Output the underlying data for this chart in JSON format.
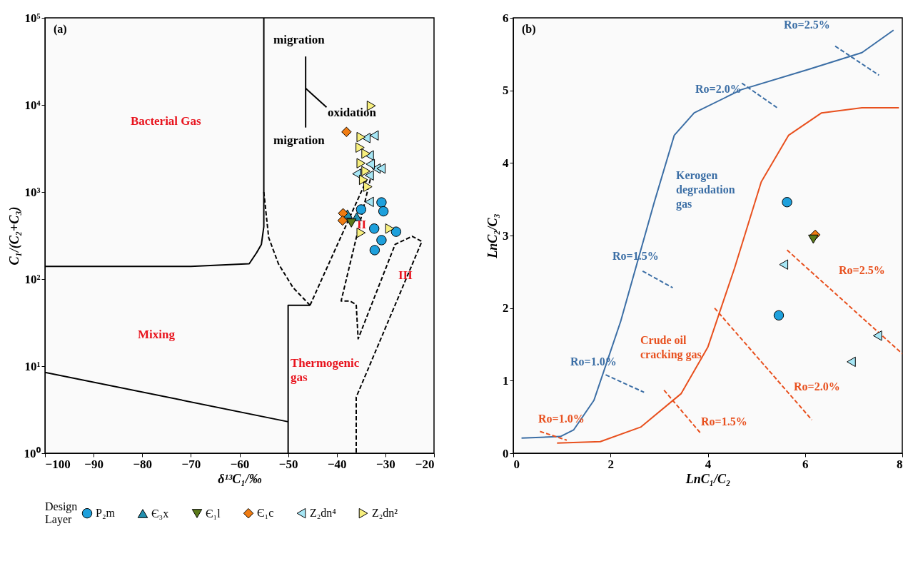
{
  "chart_data": [
    {
      "type": "scatter",
      "title": "(a)",
      "xlabel": "δ¹³C₁/‰",
      "ylabel": "C₁/(C₂+C₃)",
      "log": "y",
      "grid": false,
      "legend": "bottom",
      "legend_title": "Design\nLayer",
      "xlim": [
        -100,
        -20
      ],
      "xticks": [
        -100,
        -90,
        -80,
        -70,
        -60,
        -50,
        -40,
        -30,
        -20
      ],
      "ylim": [
        1,
        100000
      ],
      "yticks": [
        {
          "value": 1,
          "label": "10⁰"
        },
        {
          "value": 10,
          "label": "10¹"
        },
        {
          "value": 100,
          "label": "10²"
        },
        {
          "value": 1000,
          "label": "10³"
        },
        {
          "value": 10000,
          "label": "10⁴"
        },
        {
          "value": 100000,
          "label": "10⁵"
        }
      ],
      "series": [
        {
          "name": "P₂m",
          "type": "scatter",
          "marker": "circle",
          "color": "#1ea0dc",
          "x": [
            -30.8,
            -35.0,
            -30.4,
            -32.3,
            -27.8,
            -30.8,
            -32.2
          ],
          "values": [
            760,
            630,
            600,
            380,
            350,
            280,
            215
          ]
        },
        {
          "name": "Є₃x",
          "type": "scatter",
          "marker": "triangle",
          "color": "#2290b0",
          "x": [
            -37.8,
            -35.9
          ],
          "values": [
            560,
            520
          ]
        },
        {
          "name": "Є₁l",
          "type": "scatter",
          "marker": "triangle-down",
          "color": "#5b7a1a",
          "x": [
            -37.0
          ],
          "values": [
            440
          ]
        },
        {
          "name": "Є₁c",
          "type": "scatter",
          "marker": "diamond",
          "color": "#f07c12",
          "x": [
            -38.0,
            -38.7,
            -38.8
          ],
          "values": [
            4900,
            570,
            470
          ]
        },
        {
          "name": "Z₂dn⁴",
          "type": "scatter",
          "marker": "triangle-left",
          "color": "#a6e6f5",
          "x": [
            -32.3,
            -34.0,
            -33.3,
            -31.9,
            -33.1,
            -35.9,
            -33.3,
            -30.9,
            -33.3
          ],
          "values": [
            4460,
            4170,
            2630,
            1860,
            2090,
            1620,
            1550,
            1860,
            770
          ]
        },
        {
          "name": "Z₂dn²",
          "type": "scatter",
          "marker": "triangle-right",
          "color": "#f7ef7e",
          "x": [
            -32.9,
            -35.0,
            -35.2,
            -34.0,
            -35.0,
            -34.0,
            -34.5,
            -33.6,
            -35.0,
            -29.1
          ],
          "values": [
            9770,
            4270,
            3240,
            2760,
            2140,
            1740,
            1380,
            1150,
            340,
            380
          ]
        },
        {
          "type": "line",
          "color": "#000000",
          "line_style": "solid",
          "x": [
            -55,
            -55,
            -55.5,
            -56.5,
            -58,
            -70,
            -100
          ],
          "values": [
            100000,
            400,
            250,
            200,
            150,
            140,
            140
          ]
        },
        {
          "type": "line",
          "color": "#000000",
          "line_style": "solid",
          "x": [
            -100,
            -50
          ],
          "values": [
            8.5,
            2.3
          ]
        },
        {
          "type": "line",
          "color": "#000000",
          "line_style": "solid",
          "x": [
            -50,
            -50,
            -45.5
          ],
          "values": [
            1,
            50,
            50
          ]
        },
        {
          "type": "line",
          "color": "#000000",
          "line_style": "dashed",
          "x": [
            -55,
            -54,
            -52,
            -49,
            -45.5
          ],
          "values": [
            1000,
            300,
            150,
            80,
            50
          ]
        },
        {
          "type": "line",
          "color": "#000000",
          "line_style": "dashed",
          "x": [
            -45.5,
            -33.8
          ],
          "values": [
            50,
            1400
          ]
        },
        {
          "type": "line",
          "color": "#000000",
          "line_style": "dashed",
          "x": [
            -33.1,
            -39.1,
            -37.3,
            -36.0,
            -35.6,
            -28.0,
            -24.5,
            -22.5,
            -36.0,
            -36.0
          ],
          "values": [
            1400,
            56,
            56,
            51,
            20.6,
            250,
            310,
            270,
            4.4,
            1
          ]
        },
        {
          "type": "line",
          "color": "#000000",
          "line_style": "solid",
          "x": [
            -46.4,
            -46.4
          ],
          "values": [
            36000,
            5500
          ]
        },
        {
          "type": "line",
          "color": "#000000",
          "line_style": "solid",
          "x": [
            -46.4,
            -42.1
          ],
          "values": [
            15500,
            9400
          ]
        }
      ],
      "annotations": [
        "Bacterial Gas",
        "Mixing",
        "Thermogenic\ngas",
        "II",
        "III",
        "migration",
        "oxidation",
        "migration"
      ]
    },
    {
      "type": "scatter",
      "title": "(b)",
      "xlabel": "LnC₁/C₂",
      "ylabel": "LnC₂/C₃",
      "grid": false,
      "xlim": [
        0,
        8
      ],
      "xticks": [
        0,
        2,
        4,
        6,
        8
      ],
      "ylim": [
        0,
        6
      ],
      "yticks": [
        0,
        1,
        2,
        3,
        4,
        5,
        6
      ],
      "series": [
        {
          "name": "P₂m",
          "type": "scatter",
          "marker": "circle",
          "color": "#1ea0dc",
          "x": [
            5.63,
            5.46
          ],
          "values": [
            3.46,
            1.9
          ]
        },
        {
          "name": "Є₁c",
          "type": "scatter",
          "marker": "diamond",
          "color": "#f07c12",
          "x": [
            6.21
          ],
          "values": [
            3.01
          ]
        },
        {
          "name": "Є₁l",
          "type": "scatter",
          "marker": "triangle-down",
          "color": "#5b7a1a",
          "x": [
            6.17
          ],
          "values": [
            2.95
          ]
        },
        {
          "name": "Z₂dn⁴",
          "type": "scatter",
          "marker": "triangle-left",
          "color": "#a6e6f5",
          "x": [
            5.56,
            7.49,
            6.95
          ],
          "values": [
            2.6,
            1.62,
            1.26
          ]
        },
        {
          "name": "Kerogen\ndegradation\ngas",
          "type": "line",
          "color": "#3b6ea5",
          "line_style": "solid",
          "x": [
            0.17,
            0.97,
            1.24,
            1.66,
            2.21,
            2.9,
            3.31,
            3.72,
            4.69,
            6.07,
            7.17,
            7.82
          ],
          "values": [
            0.21,
            0.23,
            0.32,
            0.73,
            1.82,
            3.46,
            4.38,
            4.69,
            5.01,
            5.29,
            5.52,
            5.83
          ]
        },
        {
          "name": "Crude oil\ncracking gas",
          "type": "line",
          "color": "#e8501e",
          "line_style": "solid",
          "x": [
            0.9,
            1.79,
            2.62,
            3.45,
            4.0,
            4.55,
            5.1,
            5.66,
            6.34,
            7.17,
            7.93
          ],
          "values": [
            0.14,
            0.16,
            0.36,
            0.82,
            1.46,
            2.55,
            3.74,
            4.38,
            4.69,
            4.76,
            4.76
          ]
        },
        {
          "name": "Ro=1.0%",
          "type": "line",
          "color": "#3b6ea5",
          "line_style": "dashed",
          "x": [
            1.9,
            2.69
          ],
          "values": [
            1.08,
            0.84
          ]
        },
        {
          "name": "Ro=1.5%",
          "type": "line",
          "color": "#3b6ea5",
          "line_style": "dashed",
          "x": [
            2.66,
            3.28
          ],
          "values": [
            2.51,
            2.28
          ]
        },
        {
          "name": "Ro=2.0%",
          "type": "line",
          "color": "#3b6ea5",
          "line_style": "dashed",
          "x": [
            4.7,
            5.45
          ],
          "values": [
            5.1,
            4.75
          ]
        },
        {
          "name": "Ro=2.5%",
          "type": "line",
          "color": "#3b6ea5",
          "line_style": "dashed",
          "x": [
            6.62,
            7.52
          ],
          "values": [
            5.61,
            5.21
          ]
        },
        {
          "name": "Ro=1.0%",
          "type": "line",
          "color": "#e8501e",
          "line_style": "dashed",
          "x": [
            0.55,
            1.1
          ],
          "values": [
            0.3,
            0.18
          ]
        },
        {
          "name": "Ro=1.5%",
          "type": "line",
          "color": "#e8501e",
          "line_style": "dashed",
          "x": [
            3.1,
            3.86
          ],
          "values": [
            0.87,
            0.27
          ]
        },
        {
          "name": "Ro=2.0%",
          "type": "line",
          "color": "#e8501e",
          "line_style": "dashed",
          "x": [
            4.14,
            6.14
          ],
          "values": [
            2.0,
            0.46
          ]
        },
        {
          "name": "Ro=2.5%",
          "type": "line",
          "color": "#e8501e",
          "line_style": "dashed",
          "x": [
            5.63,
            8.0
          ],
          "values": [
            2.8,
            1.37
          ]
        }
      ]
    }
  ]
}
